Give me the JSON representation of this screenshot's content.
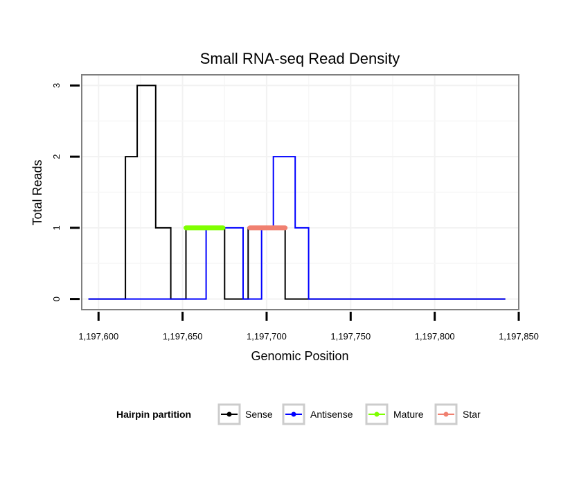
{
  "chart_data": {
    "type": "line",
    "title": "Small RNA-seq Read Density",
    "xlabel": "Genomic Position",
    "ylabel": "Total Reads",
    "xlim": [
      1197590,
      1197850
    ],
    "ylim": [
      -0.15,
      3.15
    ],
    "x_ticks": [
      1197600,
      1197650,
      1197700,
      1197750,
      1197800,
      1197850
    ],
    "x_tick_labels": [
      "1,197,600",
      "1,197,650",
      "1,197,700",
      "1,197,750",
      "1,197,800",
      "1,197,850"
    ],
    "y_ticks": [
      0,
      1,
      2,
      3
    ],
    "y_tick_labels": [
      "0",
      "1",
      "2",
      "3"
    ],
    "grid": true,
    "legend": {
      "title": "Hairpin partition",
      "position": "bottom",
      "entries": [
        "Sense",
        "Antisense",
        "Mature",
        "Star"
      ]
    },
    "series": [
      {
        "name": "Sense",
        "color": "#000000",
        "step": true,
        "points": [
          [
            1197594,
            0
          ],
          [
            1197616,
            0
          ],
          [
            1197616,
            2
          ],
          [
            1197623,
            2
          ],
          [
            1197623,
            3
          ],
          [
            1197634,
            3
          ],
          [
            1197634,
            1
          ],
          [
            1197643,
            1
          ],
          [
            1197643,
            0
          ],
          [
            1197652,
            0
          ],
          [
            1197652,
            1
          ],
          [
            1197675,
            1
          ],
          [
            1197675,
            0
          ],
          [
            1197689,
            0
          ],
          [
            1197689,
            1
          ],
          [
            1197711,
            1
          ],
          [
            1197711,
            0
          ],
          [
            1197842,
            0
          ]
        ]
      },
      {
        "name": "Antisense",
        "color": "#0000ff",
        "step": true,
        "points": [
          [
            1197594,
            0
          ],
          [
            1197664,
            0
          ],
          [
            1197664,
            1
          ],
          [
            1197686,
            1
          ],
          [
            1197686,
            0
          ],
          [
            1197697,
            0
          ],
          [
            1197697,
            1
          ],
          [
            1197704,
            1
          ],
          [
            1197704,
            2
          ],
          [
            1197717,
            2
          ],
          [
            1197717,
            1
          ],
          [
            1197725,
            1
          ],
          [
            1197725,
            0
          ],
          [
            1197842,
            0
          ]
        ]
      },
      {
        "name": "Mature",
        "color": "#7fff00",
        "step": false,
        "points": [
          [
            1197652,
            1
          ],
          [
            1197674,
            1
          ]
        ]
      },
      {
        "name": "Star",
        "color": "#f08070",
        "step": false,
        "points": [
          [
            1197690,
            1
          ],
          [
            1197711,
            1
          ]
        ]
      }
    ]
  }
}
